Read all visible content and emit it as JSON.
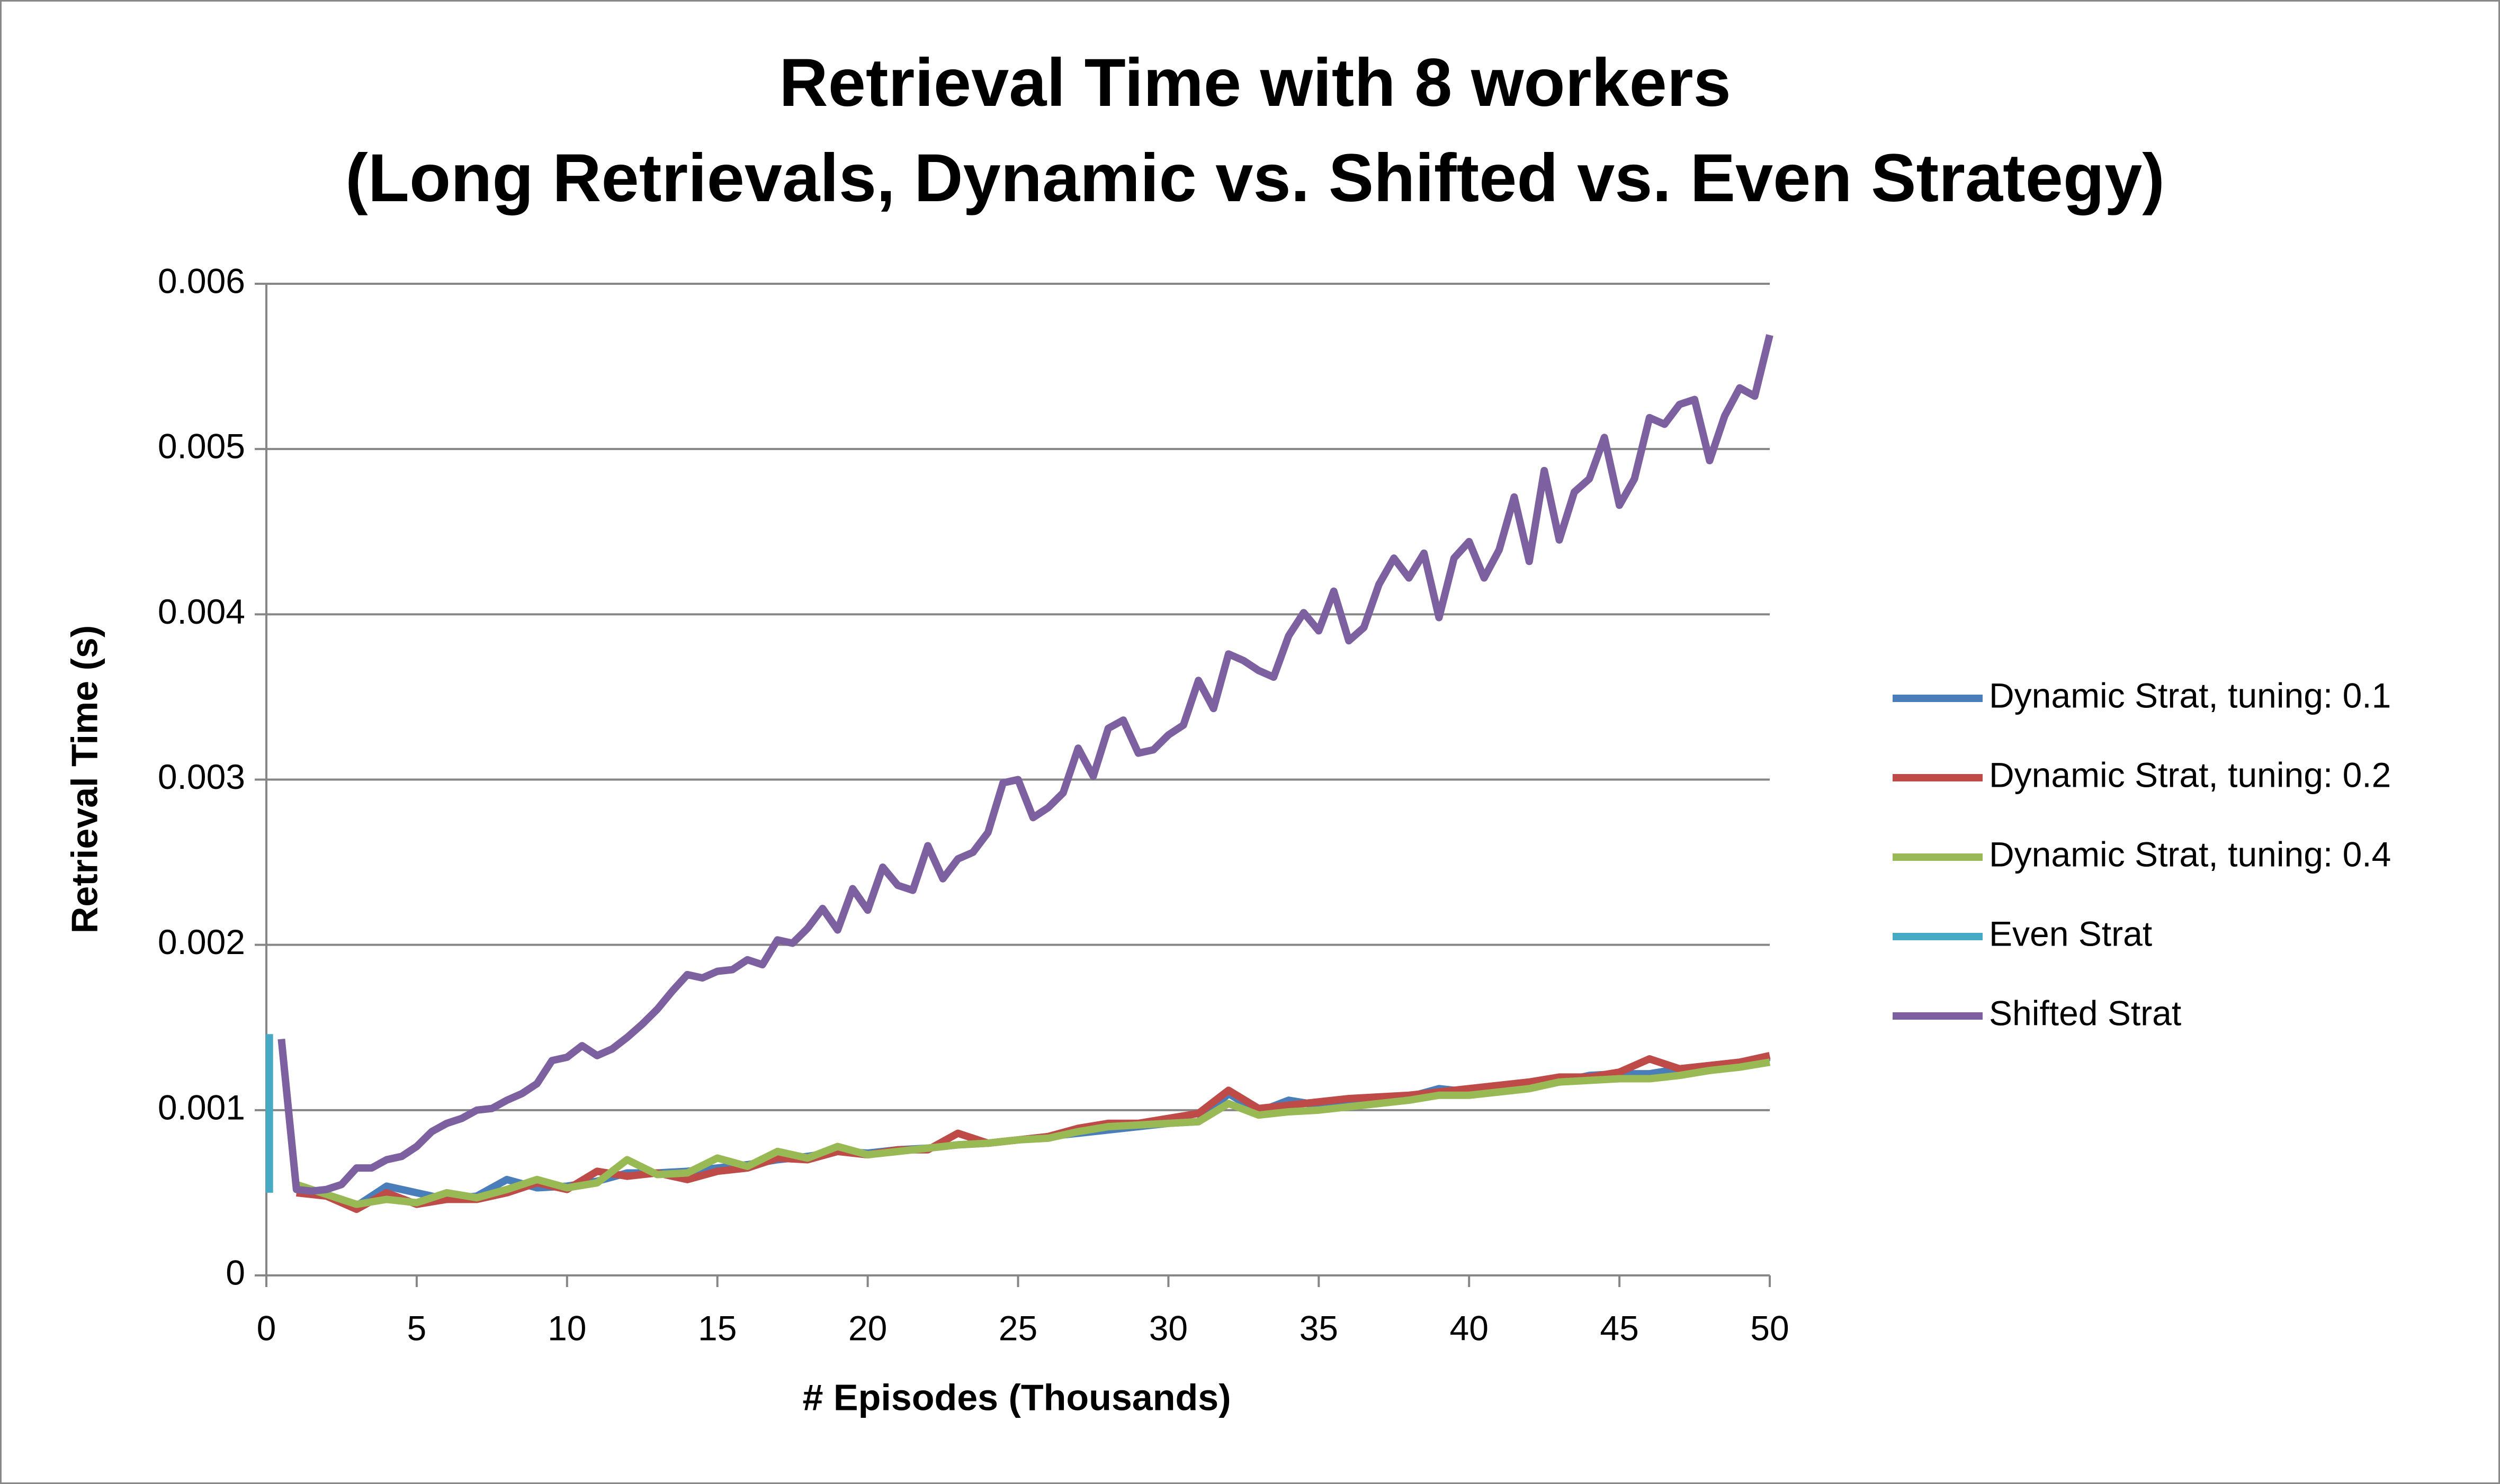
{
  "chart_data": {
    "type": "line",
    "title": [
      "Retrieval Time with 8 workers",
      "(Long Retrievals, Dynamic vs. Shifted vs. Even Strategy)"
    ],
    "x_label": "# Episodes (Thousands)",
    "y_label": "Retrieval Time (s)",
    "xlim": [
      0,
      50
    ],
    "xticks": [
      0,
      5,
      10,
      15,
      20,
      25,
      30,
      35,
      40,
      45,
      50
    ],
    "ylim": [
      0,
      0.006
    ],
    "yticks": [
      0,
      0.001,
      0.002,
      0.003,
      0.004,
      0.005,
      0.006
    ],
    "grid": true,
    "legend": "right",
    "series": [
      {
        "name": "Dynamic Strat, tuning: 0.1",
        "color": "#4a7ebb",
        "x": [
          1,
          2,
          3,
          4,
          5,
          6,
          7,
          8,
          9,
          10,
          11,
          12,
          13,
          14,
          15,
          16,
          17,
          18,
          19,
          20,
          21,
          22,
          23,
          24,
          25,
          26,
          27,
          28,
          29,
          30,
          31,
          32,
          33,
          34,
          35,
          36,
          37,
          38,
          39,
          40,
          41,
          42,
          43,
          44,
          45,
          46,
          47,
          48,
          49,
          50
        ],
        "values": [
          0.00053,
          0.00049,
          0.00042,
          0.00054,
          0.0005,
          0.00046,
          0.00048,
          0.00058,
          0.00053,
          0.00054,
          0.00057,
          0.00062,
          0.00062,
          0.00063,
          0.00065,
          0.00067,
          0.0007,
          0.00072,
          0.00075,
          0.00074,
          0.00076,
          0.00077,
          0.00079,
          0.0008,
          0.00082,
          0.00084,
          0.00086,
          0.00088,
          0.0009,
          0.00092,
          0.00093,
          0.0011,
          0.00099,
          0.00106,
          0.00103,
          0.00104,
          0.00106,
          0.00108,
          0.00113,
          0.00111,
          0.00113,
          0.00116,
          0.00117,
          0.00121,
          0.00122,
          0.00122,
          0.00125,
          0.00127,
          0.00129,
          0.00132
        ]
      },
      {
        "name": "Dynamic Strat, tuning: 0.2",
        "color": "#be4b48",
        "x": [
          1,
          2,
          3,
          4,
          5,
          6,
          7,
          8,
          9,
          10,
          11,
          12,
          13,
          14,
          15,
          16,
          17,
          18,
          19,
          20,
          21,
          22,
          23,
          24,
          25,
          26,
          27,
          28,
          29,
          30,
          31,
          32,
          33,
          34,
          35,
          36,
          37,
          38,
          39,
          40,
          41,
          42,
          43,
          44,
          45,
          46,
          47,
          48,
          49,
          50
        ],
        "values": [
          0.0005,
          0.00048,
          0.0004,
          0.0005,
          0.00043,
          0.00046,
          0.00046,
          0.0005,
          0.00056,
          0.00052,
          0.00063,
          0.0006,
          0.00062,
          0.00058,
          0.00063,
          0.00065,
          0.00071,
          0.0007,
          0.00075,
          0.00073,
          0.00076,
          0.00076,
          0.00086,
          0.0008,
          0.00082,
          0.00084,
          0.00089,
          0.00092,
          0.00092,
          0.00095,
          0.00098,
          0.00112,
          0.00101,
          0.00103,
          0.00105,
          0.00107,
          0.00108,
          0.00109,
          0.00111,
          0.00113,
          0.00115,
          0.00117,
          0.0012,
          0.0012,
          0.00123,
          0.00131,
          0.00125,
          0.00127,
          0.00129,
          0.00133
        ]
      },
      {
        "name": "Dynamic Strat, tuning: 0.4",
        "color": "#98b954",
        "x": [
          1,
          2,
          3,
          4,
          5,
          6,
          7,
          8,
          9,
          10,
          11,
          12,
          13,
          14,
          15,
          16,
          17,
          18,
          19,
          20,
          21,
          22,
          23,
          24,
          25,
          26,
          27,
          28,
          29,
          30,
          31,
          32,
          33,
          34,
          35,
          36,
          37,
          38,
          39,
          40,
          41,
          42,
          43,
          44,
          45,
          46,
          47,
          48,
          49,
          50
        ],
        "values": [
          0.00055,
          0.00049,
          0.00043,
          0.00046,
          0.00044,
          0.0005,
          0.00047,
          0.00052,
          0.00058,
          0.00053,
          0.00056,
          0.0007,
          0.00061,
          0.00062,
          0.00071,
          0.00066,
          0.00075,
          0.00071,
          0.00078,
          0.00073,
          0.00075,
          0.00077,
          0.00079,
          0.0008,
          0.00082,
          0.00083,
          0.00087,
          0.0009,
          0.00091,
          0.00092,
          0.00093,
          0.00104,
          0.00097,
          0.00099,
          0.001,
          0.00102,
          0.00104,
          0.00106,
          0.00109,
          0.00109,
          0.00111,
          0.00113,
          0.00117,
          0.00118,
          0.00119,
          0.00119,
          0.00121,
          0.00124,
          0.00126,
          0.00129
        ]
      },
      {
        "name": "Even Strat",
        "color": "#46aac5",
        "x": [
          0.1,
          0.1
        ],
        "values": [
          0.0005,
          0.00146
        ]
      },
      {
        "name": "Shifted Strat",
        "color": "#7d60a0",
        "x": [
          0.5,
          1,
          1.5,
          2,
          2.5,
          3,
          3.5,
          4,
          4.5,
          5,
          5.5,
          6,
          6.5,
          7,
          7.5,
          8,
          8.5,
          9,
          9.5,
          10,
          10.5,
          11,
          11.5,
          12,
          12.5,
          13,
          13.5,
          14,
          14.5,
          15,
          15.5,
          16,
          16.5,
          17,
          17.5,
          18,
          18.5,
          19,
          19.5,
          20,
          20.5,
          21,
          21.5,
          22,
          22.5,
          23,
          23.5,
          24,
          24.5,
          25,
          25.5,
          26,
          26.5,
          27,
          27.5,
          28,
          28.5,
          29,
          29.5,
          30,
          30.5,
          31,
          31.5,
          32,
          32.5,
          33,
          33.5,
          34,
          34.5,
          35,
          35.5,
          36,
          36.5,
          37,
          37.5,
          38,
          38.5,
          39,
          39.5,
          40,
          40.5,
          41,
          41.5,
          42,
          42.5,
          43,
          43.5,
          44,
          44.5,
          45,
          45.5,
          46,
          46.5,
          47,
          47.5,
          48,
          48.5,
          49,
          49.5,
          50
        ],
        "values": [
          0.00143,
          0.00052,
          0.00051,
          0.00052,
          0.00055,
          0.00065,
          0.00065,
          0.0007,
          0.00072,
          0.00078,
          0.00087,
          0.00092,
          0.00095,
          0.001,
          0.00101,
          0.00106,
          0.0011,
          0.00116,
          0.0013,
          0.00132,
          0.00139,
          0.00133,
          0.00137,
          0.00144,
          0.00152,
          0.00161,
          0.00172,
          0.00182,
          0.0018,
          0.00184,
          0.00185,
          0.00191,
          0.00188,
          0.00203,
          0.00201,
          0.0021,
          0.00222,
          0.00209,
          0.00234,
          0.00221,
          0.00247,
          0.00236,
          0.00233,
          0.0026,
          0.0024,
          0.00252,
          0.00256,
          0.00268,
          0.00298,
          0.003,
          0.00277,
          0.00283,
          0.00292,
          0.00319,
          0.00302,
          0.00331,
          0.00336,
          0.00316,
          0.00318,
          0.00327,
          0.00333,
          0.0036,
          0.00343,
          0.00376,
          0.00372,
          0.00366,
          0.00362,
          0.00387,
          0.00401,
          0.0039,
          0.00414,
          0.00384,
          0.00392,
          0.00418,
          0.00434,
          0.00422,
          0.00437,
          0.00398,
          0.00434,
          0.00444,
          0.00422,
          0.00439,
          0.00471,
          0.00432,
          0.00487,
          0.00445,
          0.00474,
          0.00482,
          0.00507,
          0.00466,
          0.00482,
          0.00519,
          0.00515,
          0.00527,
          0.0053,
          0.00493,
          0.0052,
          0.00537,
          0.00532,
          0.00569
        ]
      }
    ]
  }
}
